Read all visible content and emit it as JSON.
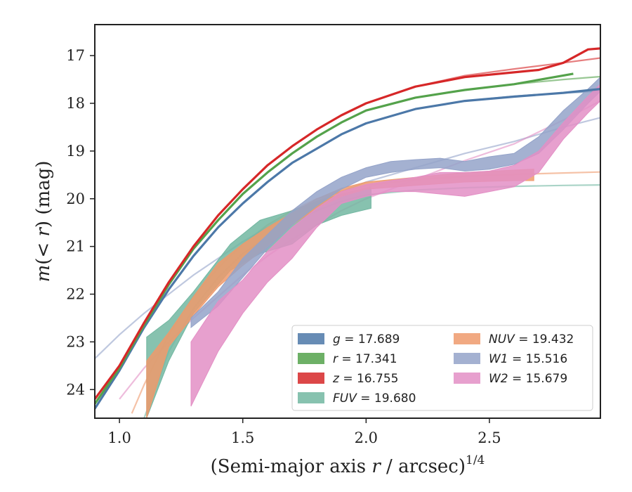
{
  "chart_data": {
    "type": "line",
    "xlabel": "(Semi-major axis r / arcsec)^1/4",
    "ylabel": "m(< r) (mag)",
    "xlim": [
      0.9,
      2.95
    ],
    "ylim": [
      24.6,
      16.35
    ],
    "y_inverted": true,
    "x_ticks": [
      "1.0",
      "1.5",
      "2.0",
      "2.5"
    ],
    "x_tick_values": [
      1.0,
      1.5,
      2.0,
      2.5
    ],
    "y_ticks": [
      "17",
      "18",
      "19",
      "20",
      "21",
      "22",
      "23",
      "24"
    ],
    "y_tick_values": [
      17,
      18,
      19,
      20,
      21,
      22,
      23,
      24
    ],
    "grid": false,
    "legend_placement": "lower-right",
    "legend": [
      {
        "label": "g = 17.689",
        "color": "#4c78a8"
      },
      {
        "label": "r = 17.341",
        "color": "#54a24b"
      },
      {
        "label": "z = 16.755",
        "color": "#d62728"
      },
      {
        "label": "FUV = 19.680",
        "color": "#72b7a1"
      },
      {
        "label": "NUV = 19.432",
        "color": "#ee9a6c"
      },
      {
        "label": "W1 = 15.516",
        "color": "#94a3c9"
      },
      {
        "label": "W2 = 15.679",
        "color": "#e38fc5"
      }
    ],
    "series": [
      {
        "name": "g",
        "kind": "line",
        "color": "#4c78a8",
        "x": [
          0.9,
          1.0,
          1.1,
          1.2,
          1.3,
          1.4,
          1.5,
          1.6,
          1.7,
          1.8,
          1.9,
          2.0,
          2.2,
          2.4,
          2.6,
          2.8,
          2.95
        ],
        "y": [
          24.4,
          23.6,
          22.7,
          21.9,
          21.2,
          20.6,
          20.1,
          19.65,
          19.25,
          18.95,
          18.65,
          18.42,
          18.12,
          17.95,
          17.86,
          17.78,
          17.7
        ]
      },
      {
        "name": "r",
        "kind": "line",
        "color": "#54a24b",
        "x": [
          0.9,
          1.0,
          1.1,
          1.2,
          1.3,
          1.4,
          1.5,
          1.6,
          1.7,
          1.8,
          1.9,
          2.0,
          2.2,
          2.4,
          2.6,
          2.84
        ],
        "y": [
          24.3,
          23.55,
          22.65,
          21.8,
          21.05,
          20.45,
          19.9,
          19.45,
          19.05,
          18.7,
          18.4,
          18.15,
          17.88,
          17.72,
          17.6,
          17.38
        ]
      },
      {
        "name": "z",
        "kind": "line",
        "color": "#d62728",
        "x": [
          0.9,
          1.0,
          1.1,
          1.2,
          1.3,
          1.4,
          1.5,
          1.6,
          1.7,
          1.8,
          1.9,
          2.0,
          2.2,
          2.4,
          2.6,
          2.7,
          2.8,
          2.9,
          2.95
        ],
        "y": [
          24.2,
          23.5,
          22.6,
          21.75,
          21.0,
          20.35,
          19.8,
          19.3,
          18.9,
          18.55,
          18.25,
          18.0,
          17.65,
          17.45,
          17.35,
          17.3,
          17.15,
          16.87,
          16.85
        ]
      },
      {
        "name": "FUV",
        "kind": "band",
        "color": "#72b7a1",
        "x": [
          1.11,
          1.2,
          1.3,
          1.45,
          1.57,
          1.7,
          1.8,
          1.9,
          2.02
        ],
        "y_low": [
          24.6,
          23.4,
          22.4,
          21.5,
          21.15,
          20.95,
          20.55,
          20.35,
          20.2
        ],
        "y_high": [
          22.9,
          22.55,
          21.95,
          20.95,
          20.45,
          20.25,
          20.05,
          19.9,
          19.75
        ]
      },
      {
        "name": "NUV",
        "kind": "band",
        "color": "#ee9a6c",
        "x": [
          1.11,
          1.2,
          1.3,
          1.4,
          1.5,
          1.6,
          1.7,
          1.8,
          1.9,
          2.0,
          2.2,
          2.4,
          2.6,
          2.68
        ],
        "y_low": [
          24.6,
          23.1,
          22.45,
          21.85,
          21.4,
          21.0,
          20.55,
          20.2,
          19.95,
          19.8,
          19.72,
          19.65,
          19.62,
          19.62
        ],
        "y_high": [
          23.4,
          22.8,
          22.05,
          21.35,
          20.95,
          20.6,
          20.3,
          20.0,
          19.78,
          19.65,
          19.55,
          19.45,
          19.4,
          19.38
        ]
      },
      {
        "name": "W1",
        "kind": "band",
        "color": "#94a3c9",
        "x": [
          1.29,
          1.4,
          1.5,
          1.6,
          1.7,
          1.8,
          1.9,
          2.0,
          2.1,
          2.2,
          2.3,
          2.4,
          2.5,
          2.6,
          2.7,
          2.8,
          2.9,
          2.95
        ],
        "y_low": [
          22.7,
          22.25,
          21.65,
          21.05,
          20.55,
          20.15,
          19.8,
          19.55,
          19.45,
          19.38,
          19.35,
          19.42,
          19.38,
          19.28,
          19.05,
          18.55,
          18.0,
          17.75
        ],
        "y_high": [
          22.5,
          21.95,
          21.25,
          20.75,
          20.25,
          19.85,
          19.55,
          19.35,
          19.22,
          19.18,
          19.15,
          19.22,
          19.12,
          19.05,
          18.7,
          18.15,
          17.7,
          17.45
        ]
      },
      {
        "name": "W2",
        "kind": "band",
        "color": "#e38fc5",
        "x": [
          1.29,
          1.4,
          1.5,
          1.6,
          1.7,
          1.8,
          1.9,
          2.0,
          2.1,
          2.2,
          2.3,
          2.4,
          2.5,
          2.6,
          2.7,
          2.8,
          2.9,
          2.95
        ],
        "y_low": [
          24.35,
          23.2,
          22.4,
          21.75,
          21.25,
          20.6,
          20.1,
          19.95,
          19.85,
          19.85,
          19.9,
          19.95,
          19.85,
          19.75,
          19.45,
          18.75,
          18.2,
          17.95
        ],
        "y_high": [
          23.0,
          22.15,
          21.7,
          21.1,
          20.6,
          20.2,
          19.85,
          19.7,
          19.62,
          19.55,
          19.45,
          19.45,
          19.42,
          19.3,
          19.0,
          18.4,
          17.85,
          17.6
        ]
      }
    ],
    "fits": [
      {
        "name": "g fit",
        "color": "#4c78a8",
        "x": [
          0.9,
          1.0,
          1.1,
          1.2,
          1.3,
          1.4,
          1.5,
          1.6,
          1.7,
          1.8,
          1.9,
          2.0,
          2.2,
          2.4,
          2.6,
          2.8,
          2.95
        ],
        "y": [
          24.4,
          23.6,
          22.7,
          21.9,
          21.2,
          20.6,
          20.1,
          19.65,
          19.25,
          18.95,
          18.65,
          18.42,
          18.12,
          17.95,
          17.85,
          17.78,
          17.75
        ]
      },
      {
        "name": "r fit",
        "color": "#54a24b",
        "x": [
          0.9,
          1.0,
          1.1,
          1.2,
          1.3,
          1.4,
          1.5,
          1.6,
          1.7,
          1.8,
          1.9,
          2.0,
          2.2,
          2.4,
          2.6,
          2.8,
          2.95
        ],
        "y": [
          24.3,
          23.55,
          22.65,
          21.8,
          21.05,
          20.45,
          19.9,
          19.45,
          19.05,
          18.7,
          18.4,
          18.15,
          17.88,
          17.72,
          17.6,
          17.5,
          17.44
        ]
      },
      {
        "name": "z fit",
        "color": "#d62728",
        "x": [
          0.9,
          1.0,
          1.1,
          1.2,
          1.3,
          1.4,
          1.5,
          1.6,
          1.7,
          1.8,
          1.9,
          2.0,
          2.2,
          2.4,
          2.6,
          2.8,
          2.95
        ],
        "y": [
          24.2,
          23.5,
          22.6,
          21.75,
          21.0,
          20.35,
          19.8,
          19.3,
          18.9,
          18.55,
          18.25,
          18.0,
          17.65,
          17.42,
          17.28,
          17.15,
          17.05
        ]
      },
      {
        "name": "FUV fit",
        "color": "#72b7a1",
        "x": [
          1.1,
          1.2,
          1.3,
          1.4,
          1.5,
          1.6,
          1.7,
          1.8,
          1.9,
          2.0,
          2.2,
          2.4,
          2.6,
          2.8,
          2.95
        ],
        "y": [
          24.6,
          23.2,
          22.3,
          21.65,
          21.15,
          20.8,
          20.5,
          20.25,
          20.05,
          19.92,
          19.82,
          19.77,
          19.74,
          19.72,
          19.71
        ]
      },
      {
        "name": "NUV fit",
        "color": "#ee9a6c",
        "x": [
          1.05,
          1.1,
          1.2,
          1.3,
          1.4,
          1.5,
          1.6,
          1.7,
          1.8,
          1.9,
          2.0,
          2.2,
          2.4,
          2.6,
          2.8,
          2.95
        ],
        "y": [
          24.5,
          23.9,
          22.85,
          22.05,
          21.45,
          20.95,
          20.55,
          20.25,
          20.0,
          19.85,
          19.72,
          19.6,
          19.53,
          19.49,
          19.46,
          19.44
        ]
      },
      {
        "name": "W1 fit",
        "color": "#94a3c9",
        "x": [
          0.9,
          1.0,
          1.1,
          1.2,
          1.3,
          1.4,
          1.5,
          1.6,
          1.7,
          1.8,
          1.9,
          2.0,
          2.2,
          2.4,
          2.6,
          2.8,
          2.95
        ],
        "y": [
          23.35,
          22.85,
          22.4,
          22.0,
          21.6,
          21.25,
          20.9,
          20.6,
          20.3,
          20.05,
          19.85,
          19.65,
          19.35,
          19.05,
          18.8,
          18.5,
          18.3
        ]
      },
      {
        "name": "W2 fit",
        "color": "#e38fc5",
        "x": [
          1.0,
          1.1,
          1.2,
          1.3,
          1.4,
          1.5,
          1.6,
          1.7,
          1.8,
          1.9,
          2.0,
          2.2,
          2.4,
          2.6,
          2.8,
          2.95
        ],
        "y": [
          24.2,
          23.55,
          23.0,
          22.5,
          22.05,
          21.6,
          21.2,
          20.85,
          20.55,
          20.25,
          20.0,
          19.6,
          19.2,
          18.85,
          18.35,
          17.95
        ]
      }
    ]
  }
}
